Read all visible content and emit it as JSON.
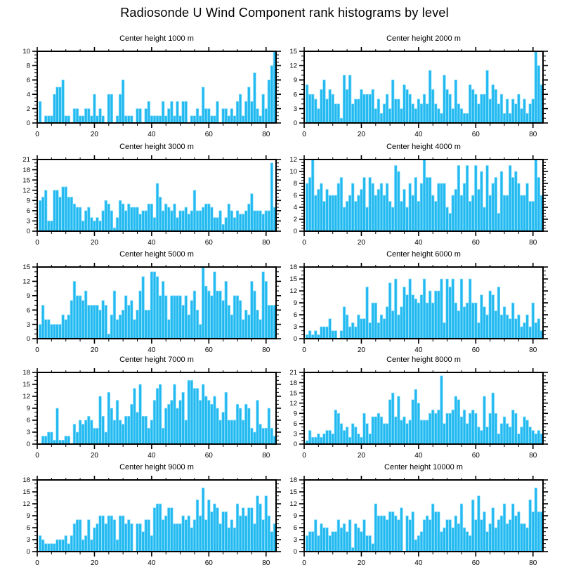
{
  "figure": {
    "title": "Radiosonde U Wind Component rank histograms by level"
  },
  "colors": {
    "bar_fill": "#22b9f0",
    "bar_edge": "#8fdffb",
    "axis": "#000000",
    "background": "#ffffff",
    "text": "#000000"
  },
  "chart_data": [
    {
      "type": "bar",
      "title": "Center height 1000 m",
      "xlabel": "",
      "ylabel": "",
      "xlim": [
        0,
        83.5
      ],
      "ylim": [
        0,
        10
      ],
      "ytick_step": 2,
      "xticks": [
        0,
        20,
        40,
        60,
        80
      ],
      "grid": false,
      "legend": "none",
      "values": [
        3,
        0,
        1,
        1,
        1,
        4,
        5,
        5,
        6,
        1,
        1,
        0,
        2,
        2,
        1,
        1,
        2,
        2,
        1,
        4,
        1,
        2,
        1,
        0,
        4,
        4,
        0,
        1,
        4,
        6,
        1,
        1,
        1,
        0,
        2,
        2,
        0,
        2,
        3,
        1,
        1,
        1,
        1,
        3,
        1,
        2,
        3,
        1,
        3,
        1,
        3,
        3,
        0,
        1,
        1,
        2,
        1,
        5,
        2,
        2,
        1,
        1,
        3,
        0,
        2,
        2,
        1,
        2,
        1,
        3,
        4,
        1,
        3,
        5,
        3,
        7,
        2,
        1,
        4,
        2,
        6,
        8,
        10
      ]
    },
    {
      "type": "bar",
      "title": "Center height 2000 m",
      "xlabel": "",
      "ylabel": "",
      "xlim": [
        0,
        83.5
      ],
      "ylim": [
        0,
        15
      ],
      "ytick_step": 3,
      "xticks": [
        0,
        20,
        40,
        60,
        80
      ],
      "grid": false,
      "legend": "none",
      "values": [
        8,
        6,
        6,
        5,
        3,
        7,
        9,
        5,
        7,
        6,
        4,
        4,
        1,
        10,
        7,
        10,
        4,
        5,
        5,
        7,
        6,
        6,
        6,
        7,
        3,
        5,
        2,
        4,
        6,
        3,
        9,
        5,
        5,
        3,
        8,
        7,
        6,
        4,
        3,
        5,
        4,
        6,
        4,
        11,
        7,
        4,
        3,
        2,
        10,
        7,
        6,
        3,
        9,
        4,
        3,
        2,
        2,
        8,
        7,
        6,
        4,
        6,
        6,
        11,
        5,
        8,
        7,
        4,
        6,
        2,
        5,
        2,
        5,
        4,
        6,
        3,
        5,
        2,
        4,
        5,
        15,
        12,
        8
      ]
    },
    {
      "type": "bar",
      "title": "Center height 3000 m",
      "xlabel": "",
      "ylabel": "",
      "xlim": [
        0,
        83.5
      ],
      "ylim": [
        0,
        21
      ],
      "ytick_step": 3,
      "xticks": [
        0,
        20,
        40,
        60,
        80
      ],
      "grid": false,
      "legend": "none",
      "values": [
        9,
        10,
        12,
        3,
        3,
        12,
        12,
        10,
        13,
        13,
        10,
        10,
        8,
        7,
        7,
        3,
        6,
        7,
        4,
        3,
        4,
        3,
        6,
        9,
        8,
        6,
        1,
        4,
        9,
        8,
        6,
        8,
        7,
        7,
        7,
        5,
        6,
        6,
        8,
        8,
        4,
        14,
        10,
        6,
        8,
        7,
        6,
        8,
        4,
        6,
        6,
        7,
        5,
        6,
        12,
        6,
        6,
        7,
        8,
        8,
        7,
        4,
        4,
        6,
        2,
        4,
        8,
        6,
        4,
        6,
        5,
        5,
        6,
        8,
        11,
        6,
        6,
        6,
        5,
        6,
        6,
        20,
        7
      ]
    },
    {
      "type": "bar",
      "title": "Center height 4000 m",
      "xlabel": "",
      "ylabel": "",
      "xlim": [
        0,
        83.5
      ],
      "ylim": [
        0,
        12
      ],
      "ytick_step": 2,
      "xticks": [
        0,
        20,
        40,
        60,
        80
      ],
      "grid": false,
      "legend": "none",
      "values": [
        8,
        9,
        12,
        6,
        7,
        8,
        5,
        7,
        6,
        6,
        6,
        8,
        9,
        4,
        5,
        6,
        8,
        5,
        6,
        7,
        9,
        4,
        9,
        8,
        6,
        7,
        8,
        6,
        8,
        5,
        4,
        11,
        10,
        5,
        7,
        4,
        8,
        6,
        9,
        5,
        8,
        12,
        9,
        9,
        6,
        5,
        8,
        8,
        8,
        4,
        3,
        6,
        7,
        11,
        6,
        8,
        11,
        5,
        6,
        11,
        7,
        10,
        4,
        11,
        6,
        8,
        9,
        3,
        10,
        6,
        6,
        11,
        9,
        10,
        8,
        6,
        6,
        8,
        5,
        5,
        12,
        9,
        6
      ]
    },
    {
      "type": "bar",
      "title": "Center height 5000 m",
      "xlabel": "",
      "ylabel": "",
      "xlim": [
        0,
        83.5
      ],
      "ylim": [
        0,
        15
      ],
      "ytick_step": 3,
      "xticks": [
        0,
        20,
        40,
        60,
        80
      ],
      "grid": false,
      "legend": "none",
      "values": [
        3,
        7,
        4,
        4,
        3,
        3,
        3,
        3,
        5,
        4,
        5,
        8,
        12,
        9,
        9,
        8,
        10,
        7,
        7,
        7,
        7,
        6,
        8,
        7,
        1,
        5,
        10,
        4,
        5,
        6,
        9,
        7,
        8,
        4,
        6,
        10,
        13,
        6,
        6,
        14,
        14,
        13,
        9,
        12,
        9,
        4,
        9,
        9,
        9,
        9,
        7,
        9,
        5,
        8,
        10,
        6,
        3,
        15,
        11,
        10,
        9,
        14,
        10,
        10,
        8,
        12,
        7,
        5,
        9,
        9,
        8,
        4,
        6,
        5,
        12,
        10,
        6,
        4,
        14,
        12,
        7,
        7,
        7
      ]
    },
    {
      "type": "bar",
      "title": "Center height 6000 m",
      "xlabel": "",
      "ylabel": "",
      "xlim": [
        0,
        83.5
      ],
      "ylim": [
        0,
        18
      ],
      "ytick_step": 3,
      "xticks": [
        0,
        20,
        40,
        60,
        80
      ],
      "grid": false,
      "legend": "none",
      "values": [
        1,
        2,
        1,
        2,
        1,
        3,
        3,
        3,
        5,
        2,
        2,
        0,
        2,
        8,
        6,
        3,
        4,
        3,
        6,
        5,
        5,
        13,
        4,
        9,
        9,
        4,
        6,
        5,
        8,
        14,
        7,
        15,
        6,
        8,
        13,
        11,
        15,
        11,
        10,
        9,
        11,
        15,
        9,
        12,
        9,
        12,
        12,
        15,
        4,
        15,
        13,
        15,
        9,
        7,
        15,
        8,
        9,
        15,
        9,
        9,
        4,
        11,
        8,
        6,
        12,
        11,
        7,
        13,
        6,
        8,
        6,
        5,
        9,
        5,
        6,
        3,
        4,
        6,
        3,
        9,
        4,
        5,
        2
      ]
    },
    {
      "type": "bar",
      "title": "Center height 7000 m",
      "xlabel": "",
      "ylabel": "",
      "xlim": [
        0,
        83.5
      ],
      "ylim": [
        0,
        18
      ],
      "ytick_step": 3,
      "xticks": [
        0,
        20,
        40,
        60,
        80
      ],
      "grid": false,
      "legend": "none",
      "values": [
        0,
        2,
        2,
        3,
        3,
        1,
        9,
        1,
        1,
        2,
        2,
        0,
        5,
        3,
        6,
        5,
        6,
        7,
        6,
        4,
        4,
        12,
        7,
        3,
        13,
        9,
        6,
        11,
        6,
        5,
        7,
        7,
        10,
        14,
        8,
        15,
        7,
        7,
        4,
        6,
        11,
        14,
        15,
        4,
        9,
        10,
        11,
        15,
        9,
        11,
        13,
        6,
        16,
        16,
        14,
        14,
        11,
        15,
        12,
        11,
        10,
        12,
        9,
        6,
        8,
        13,
        6,
        6,
        6,
        10,
        9,
        6,
        10,
        9,
        4,
        3,
        11,
        5,
        4,
        4,
        9,
        4,
        2
      ]
    },
    {
      "type": "bar",
      "title": "Center height 8000 m",
      "xlabel": "",
      "ylabel": "",
      "xlim": [
        0,
        83.5
      ],
      "ylim": [
        0,
        21
      ],
      "ytick_step": 3,
      "xticks": [
        0,
        20,
        40,
        60,
        80
      ],
      "grid": false,
      "legend": "none",
      "values": [
        1,
        4,
        2,
        2,
        3,
        2,
        3,
        4,
        4,
        3,
        10,
        9,
        6,
        4,
        5,
        2,
        6,
        5,
        3,
        2,
        9,
        6,
        3,
        8,
        8,
        9,
        8,
        6,
        6,
        13,
        15,
        8,
        14,
        7,
        8,
        6,
        7,
        13,
        16,
        12,
        7,
        7,
        7,
        9,
        10,
        9,
        10,
        20,
        6,
        9,
        9,
        10,
        14,
        13,
        8,
        10,
        6,
        9,
        10,
        9,
        5,
        4,
        14,
        5,
        9,
        15,
        9,
        3,
        6,
        8,
        6,
        5,
        10,
        9,
        3,
        5,
        8,
        7,
        5,
        4,
        3,
        4,
        3
      ]
    },
    {
      "type": "bar",
      "title": "Center height 9000 m",
      "xlabel": "",
      "ylabel": "",
      "xlim": [
        0,
        83.5
      ],
      "ylim": [
        0,
        18
      ],
      "ytick_step": 3,
      "xticks": [
        0,
        20,
        40,
        60,
        80
      ],
      "grid": false,
      "legend": "none",
      "values": [
        4,
        3,
        2,
        2,
        2,
        2,
        3,
        3,
        3,
        4,
        2,
        4,
        7,
        8,
        8,
        3,
        4,
        8,
        3,
        6,
        7,
        9,
        9,
        7,
        9,
        9,
        8,
        3,
        9,
        9,
        7,
        8,
        7,
        0,
        7,
        7,
        5,
        8,
        8,
        4,
        11,
        12,
        12,
        8,
        9,
        11,
        11,
        7,
        7,
        7,
        9,
        8,
        9,
        6,
        8,
        13,
        9,
        16,
        8,
        13,
        10,
        12,
        11,
        7,
        10,
        10,
        6,
        8,
        6,
        12,
        9,
        11,
        9,
        11,
        11,
        7,
        14,
        12,
        8,
        14,
        9,
        5,
        7
      ]
    },
    {
      "type": "bar",
      "title": "Center height 10000 m",
      "xlabel": "",
      "ylabel": "",
      "xlim": [
        0,
        83.5
      ],
      "ylim": [
        0,
        18
      ],
      "ytick_step": 3,
      "xticks": [
        0,
        20,
        40,
        60,
        80
      ],
      "grid": false,
      "legend": "none",
      "values": [
        4,
        5,
        5,
        8,
        4,
        7,
        6,
        6,
        4,
        5,
        5,
        8,
        6,
        7,
        5,
        8,
        1,
        7,
        6,
        5,
        8,
        4,
        4,
        2,
        12,
        9,
        9,
        9,
        8,
        10,
        10,
        9,
        8,
        11,
        0,
        9,
        8,
        10,
        3,
        4,
        5,
        8,
        9,
        8,
        12,
        10,
        10,
        5,
        6,
        8,
        8,
        6,
        9,
        7,
        12,
        6,
        5,
        4,
        13,
        8,
        14,
        8,
        10,
        5,
        7,
        11,
        6,
        8,
        9,
        12,
        7,
        8,
        12,
        9,
        10,
        7,
        7,
        6,
        13,
        10,
        16,
        10,
        10
      ]
    }
  ]
}
